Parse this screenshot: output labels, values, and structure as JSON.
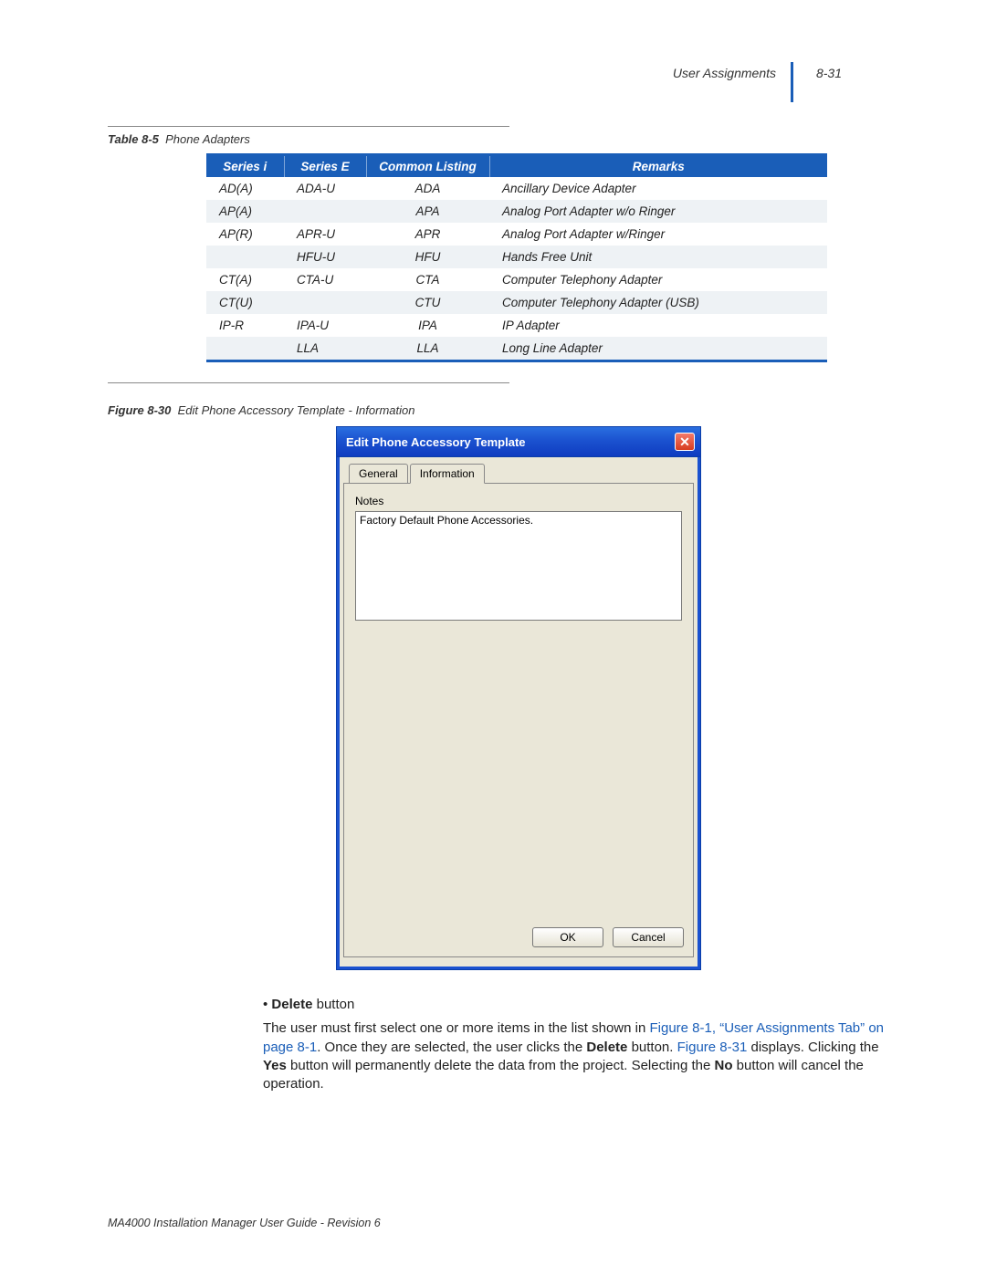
{
  "header": {
    "section": "User Assignments",
    "page_num": "8-31"
  },
  "table": {
    "caption_label": "Table 8-5",
    "caption_text": "Phone Adapters",
    "columns": [
      "Series i",
      "Series E",
      "Common Listing",
      "Remarks"
    ],
    "rows": [
      [
        "AD(A)",
        "ADA-U",
        "ADA",
        "Ancillary Device Adapter"
      ],
      [
        "AP(A)",
        "",
        "APA",
        "Analog Port Adapter w/o Ringer"
      ],
      [
        "AP(R)",
        "APR-U",
        "APR",
        "Analog Port Adapter w/Ringer"
      ],
      [
        "",
        "HFU-U",
        "HFU",
        "Hands Free Unit"
      ],
      [
        "CT(A)",
        "CTA-U",
        "CTA",
        "Computer Telephony Adapter"
      ],
      [
        "CT(U)",
        "",
        "CTU",
        "Computer Telephony Adapter (USB)"
      ],
      [
        "IP-R",
        "IPA-U",
        "IPA",
        "IP Adapter"
      ],
      [
        "",
        "LLA",
        "LLA",
        "Long Line Adapter"
      ]
    ],
    "header_bg": "#1a5eb8",
    "header_fg": "#ffffff",
    "row_even_bg": "#eef2f5",
    "row_odd_bg": "#ffffff",
    "border_color": "#1a5eb8"
  },
  "figure": {
    "caption_label": "Figure 8-30",
    "caption_text": "Edit Phone Accessory Template - Information"
  },
  "dialog": {
    "title": "Edit Phone Accessory Template",
    "tabs": {
      "general": "General",
      "information": "Information"
    },
    "notes_label": "Notes",
    "notes_value": "Factory Default Phone Accessories.",
    "ok_label": "OK",
    "cancel_label": "Cancel",
    "titlebar_bg": "#1b52d0",
    "body_bg": "#eae7d8"
  },
  "body": {
    "bullet_bold": "Delete",
    "bullet_rest": " button",
    "p1a": "The user must first select one or more items in the list shown in ",
    "p1_link1": "Figure 8-1, “User Assignments Tab” on page 8-1",
    "p1b": ". Once they are selected, the user clicks the ",
    "p1_bold1": "Delete",
    "p1c": " button. ",
    "p1_link2": "Figure 8-31",
    "p1d": " displays. Clicking the ",
    "p1_bold2": "Yes",
    "p1e": " button will permanently delete the data from the project. Selecting the ",
    "p1_bold3": "No",
    "p1f": " button will cancel the operation."
  },
  "footer": "MA4000 Installation Manager User Guide - Revision 6"
}
